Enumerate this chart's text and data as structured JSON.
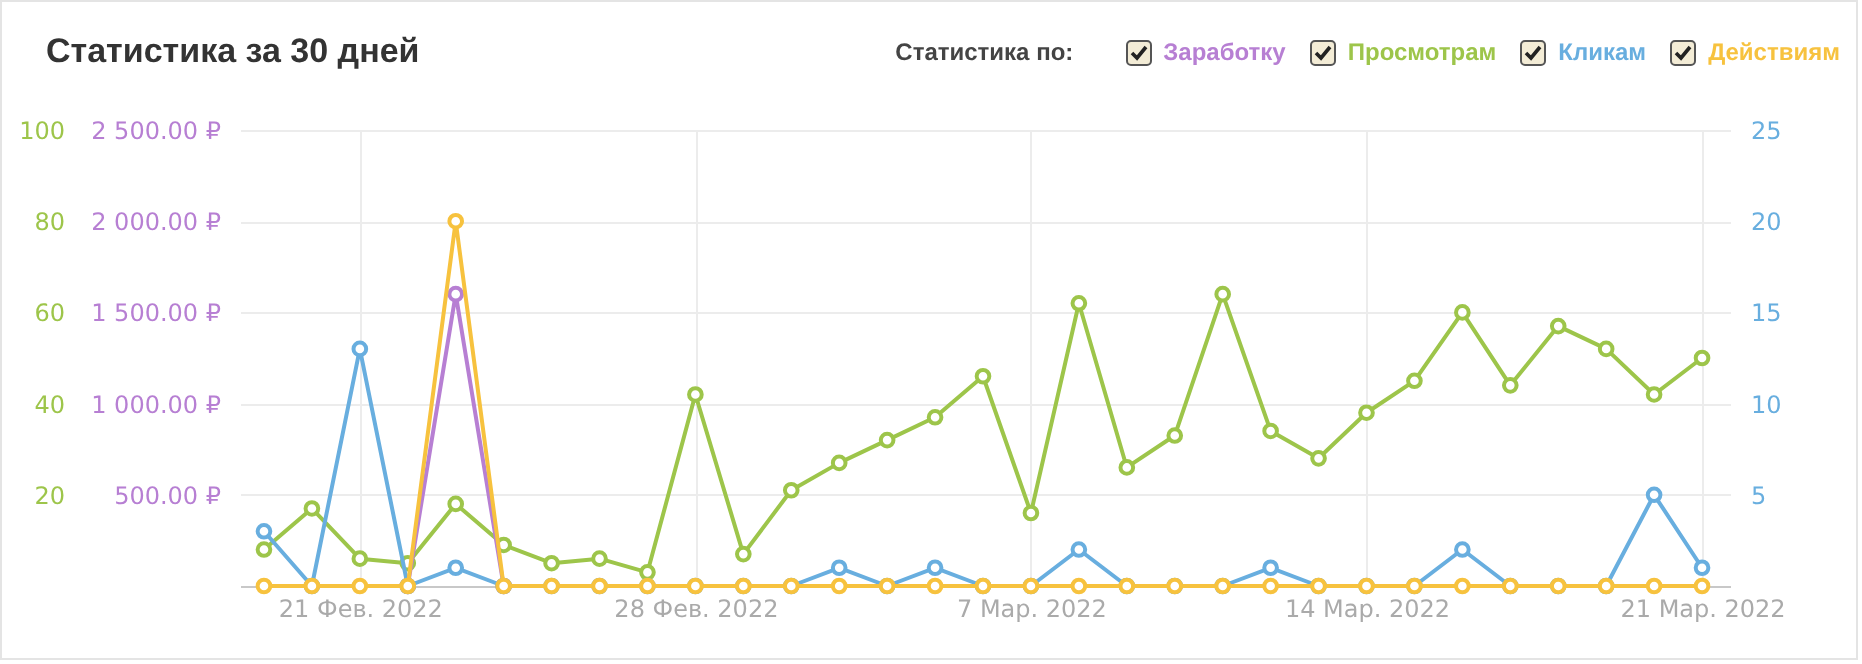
{
  "chart_data": {
    "type": "line",
    "title": "Статистика за 30 дней",
    "legend_title": "Статистика по:",
    "legend": "top right",
    "grid": true,
    "marker": "circle",
    "x": [
      "2022-02-19",
      "2022-02-20",
      "2022-02-21",
      "2022-02-22",
      "2022-02-23",
      "2022-02-24",
      "2022-02-25",
      "2022-02-26",
      "2022-02-27",
      "2022-02-28",
      "2022-03-01",
      "2022-03-02",
      "2022-03-03",
      "2022-03-04",
      "2022-03-05",
      "2022-03-06",
      "2022-03-07",
      "2022-03-08",
      "2022-03-09",
      "2022-03-10",
      "2022-03-11",
      "2022-03-12",
      "2022-03-13",
      "2022-03-14",
      "2022-03-15",
      "2022-03-16",
      "2022-03-17",
      "2022-03-18",
      "2022-03-19",
      "2022-03-20",
      "2022-03-21"
    ],
    "xlim": [
      "2022-02-18T12:00",
      "2022-03-21T14:00"
    ],
    "xticks": [
      {
        "value": "2022-02-21",
        "label": "21 Фев. 2022"
      },
      {
        "value": "2022-02-28",
        "label": "28 Фев. 2022"
      },
      {
        "value": "2022-03-07",
        "label": "7 Мар. 2022"
      },
      {
        "value": "2022-03-14",
        "label": "14 Мар. 2022"
      },
      {
        "value": "2022-03-21",
        "label": "21 Мар. 2022"
      }
    ],
    "ylim": [
      0,
      100
    ],
    "yticks": [
      20,
      40,
      60,
      80,
      100
    ],
    "y2lim": [
      0,
      2500
    ],
    "y2ticks": [
      {
        "value": 500,
        "label": "500.00 ₽"
      },
      {
        "value": 1000,
        "label": "1 000.00 ₽"
      },
      {
        "value": 1500,
        "label": "1 500.00 ₽"
      },
      {
        "value": 2000,
        "label": "2 000.00 ₽"
      },
      {
        "value": 2500,
        "label": "2 500.00 ₽"
      }
    ],
    "y3lim": [
      0,
      25
    ],
    "y3ticks": [
      5,
      10,
      15,
      20,
      25
    ],
    "series": [
      {
        "name": "Заработку",
        "color": "#b77fd3",
        "axis": "y2",
        "values": [
          null,
          null,
          null,
          0,
          1600,
          0,
          null,
          null,
          null,
          null,
          null,
          null,
          null,
          null,
          null,
          null,
          null,
          null,
          null,
          null,
          null,
          null,
          null,
          null,
          null,
          null,
          null,
          null,
          null,
          null,
          null
        ]
      },
      {
        "name": "Просмотрам",
        "color": "#9dc54a",
        "axis": "y",
        "values": [
          8,
          17,
          6,
          5,
          18,
          9,
          5,
          6,
          3,
          42,
          7,
          21,
          27,
          32,
          37,
          46,
          16,
          62,
          26,
          33,
          64,
          34,
          28,
          38,
          45,
          60,
          44,
          57,
          52,
          42,
          50
        ]
      },
      {
        "name": "Кликам",
        "color": "#68aedf",
        "axis": "y3",
        "values": [
          3,
          0,
          13,
          0,
          1,
          0,
          0,
          0,
          0,
          0,
          0,
          0,
          1,
          0,
          1,
          0,
          0,
          2,
          0,
          0,
          0,
          1,
          0,
          0,
          0,
          2,
          0,
          0,
          0,
          5,
          1
        ]
      },
      {
        "name": "Действиям",
        "color": "#f7c23e",
        "axis": "y3",
        "values": [
          0,
          0,
          0,
          0,
          20,
          0,
          0,
          0,
          0,
          0,
          0,
          0,
          0,
          0,
          0,
          0,
          0,
          0,
          0,
          0,
          0,
          0,
          0,
          0,
          0,
          0,
          0,
          0,
          0,
          0,
          0
        ]
      }
    ]
  }
}
